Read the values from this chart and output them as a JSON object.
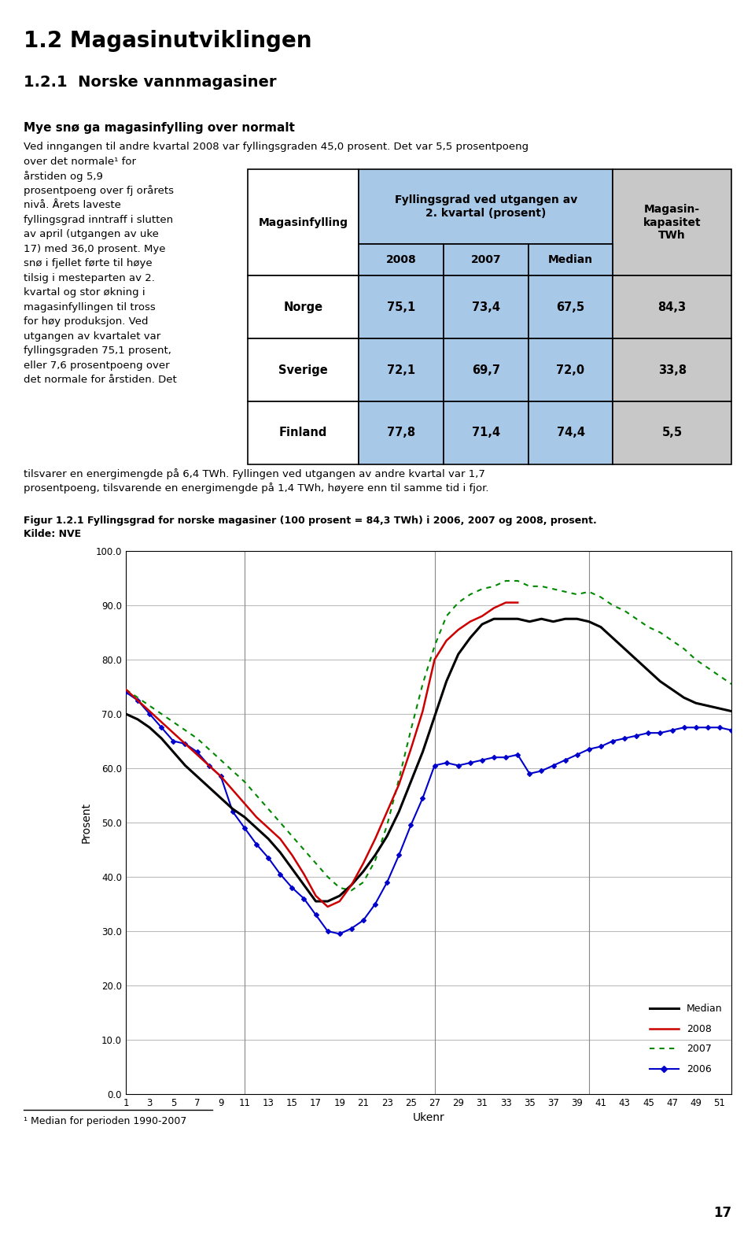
{
  "title1": "1.2 Magasinutviklingen",
  "title2": "1.2.1  Norske vannmagasiner",
  "subtitle": "Mye snø ga magasinfylling over normalt",
  "body_left_lines": [
    "Ved inngangen til andre kvartal 2008 var fyllingsgraden",
    "45,0 prosent. Det var 5,5 prosentpoeng over det normale¹ for",
    "årstiden og 5,9",
    "prosentpoeng over fj orårets",
    "nivå. Årets laveste",
    "fyllingsgrad inntraff i slutten",
    "av april (utgangen av uke",
    "17) med 36,0 prosent. Mye",
    "snø i fjellet førte til høye",
    "tilsig i mesteparten av 2.",
    "kvartal og stor økning i",
    "magasinfyllingen til tross",
    "for høy produksjon. Ved",
    "utgangen av kvartalet var",
    "fyllingsgraden 75,1 prosent,",
    "eller 7,6 prosentpoeng over",
    "det normale for årstiden. Det"
  ],
  "body_text2": "tilsvarer en energimengde på 6,4 TWh. Fyllingen ved utgangen av andre kvartal var 1,7\nprosentpoeng, tilsvarende en energimengde på 1,4 TWh, høyere enn til samme tid i fjor.",
  "fig_caption": "Figur 1.2.1 Fyllingsgrad for norske magasiner (100 prosent = 84,3 TWh) i 2006, 2007 og 2008, prosent.\nKilde: NVE",
  "footnote": "¹ Median for perioden 1990-2007",
  "page_number": "17",
  "table_data": [
    [
      "Norge",
      "75,1",
      "73,4",
      "67,5",
      "84,3"
    ],
    [
      "Sverige",
      "72,1",
      "69,7",
      "72,0",
      "33,8"
    ],
    [
      "Finland",
      "77,8",
      "71,4",
      "74,4",
      "5,5"
    ]
  ],
  "chart_ylabel": "Prosent",
  "chart_xlabel": "Ukenr",
  "chart_ylim": [
    0.0,
    100.0
  ],
  "chart_yticks": [
    0.0,
    10.0,
    20.0,
    30.0,
    40.0,
    50.0,
    60.0,
    70.0,
    80.0,
    90.0,
    100.0
  ],
  "chart_xticks": [
    1,
    3,
    5,
    7,
    9,
    11,
    13,
    15,
    17,
    19,
    21,
    23,
    25,
    27,
    29,
    31,
    33,
    35,
    37,
    39,
    41,
    43,
    45,
    47,
    49,
    51
  ],
  "vlines": [
    11,
    27,
    40
  ],
  "median_data": [
    70.0,
    69.0,
    67.5,
    65.5,
    63.0,
    60.5,
    58.5,
    56.5,
    54.5,
    52.5,
    51.0,
    49.0,
    47.0,
    44.5,
    41.5,
    38.5,
    35.5,
    35.5,
    36.5,
    38.5,
    41.0,
    44.0,
    47.5,
    52.0,
    57.5,
    63.0,
    69.5,
    76.0,
    81.0,
    84.0,
    86.5,
    87.5,
    87.5,
    87.5,
    87.0,
    87.5,
    87.0,
    87.5,
    87.5,
    87.0,
    86.0,
    84.0,
    82.0,
    80.0,
    78.0,
    76.0,
    74.5,
    73.0,
    72.0,
    71.5,
    71.0,
    70.5
  ],
  "data_2008": [
    74.5,
    72.5,
    70.5,
    68.5,
    66.5,
    64.5,
    62.5,
    60.5,
    58.5,
    56.0,
    53.5,
    51.0,
    49.0,
    47.0,
    44.0,
    40.5,
    36.5,
    34.5,
    35.5,
    38.5,
    42.5,
    47.0,
    52.0,
    57.0,
    63.5,
    70.5,
    80.0,
    83.5,
    85.5,
    87.0,
    88.0,
    89.5,
    90.5,
    90.5,
    null,
    null,
    null,
    null,
    null,
    null,
    null,
    null,
    null,
    null,
    null,
    null,
    null,
    null,
    null,
    null,
    null,
    null
  ],
  "data_2007": [
    74.5,
    73.0,
    71.5,
    70.0,
    68.5,
    67.0,
    65.5,
    63.5,
    61.5,
    59.5,
    57.5,
    55.0,
    52.5,
    50.0,
    47.5,
    45.0,
    42.5,
    40.0,
    38.0,
    37.5,
    39.0,
    43.0,
    49.5,
    58.0,
    67.0,
    75.5,
    82.5,
    88.0,
    90.5,
    92.0,
    93.0,
    93.5,
    94.5,
    94.5,
    93.5,
    93.5,
    93.0,
    92.5,
    92.0,
    92.5,
    91.5,
    90.0,
    89.0,
    87.5,
    86.0,
    85.0,
    83.5,
    82.0,
    80.0,
    78.5,
    77.0,
    75.5
  ],
  "data_2006": [
    74.0,
    72.5,
    70.0,
    67.5,
    65.0,
    64.5,
    63.0,
    60.5,
    58.5,
    52.0,
    49.0,
    46.0,
    43.5,
    40.5,
    38.0,
    36.0,
    33.0,
    30.0,
    29.5,
    30.5,
    32.0,
    35.0,
    39.0,
    44.0,
    49.5,
    54.5,
    60.5,
    61.0,
    60.5,
    61.0,
    61.5,
    62.0,
    62.0,
    62.5,
    59.0,
    59.5,
    60.5,
    61.5,
    62.5,
    63.5,
    64.0,
    65.0,
    65.5,
    66.0,
    66.5,
    66.5,
    67.0,
    67.5,
    67.5,
    67.5,
    67.5,
    67.0
  ],
  "colors": {
    "median": "#000000",
    "2008": "#cc0000",
    "2007": "#008800",
    "2006": "#0000cc",
    "table_blue": "#a8c8e8",
    "table_gray": "#c8c8c8",
    "vline": "#888888",
    "grid": "#bbbbbb"
  }
}
